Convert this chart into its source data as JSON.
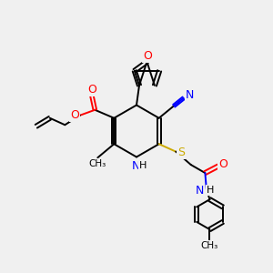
{
  "background_color": "#f0f0f0",
  "atom_colors": {
    "C": "#000000",
    "N": "#0000ff",
    "O": "#ff0000",
    "S": "#ccaa00",
    "H": "#000000"
  },
  "bond_color": "#000000",
  "bond_width": 1.4
}
